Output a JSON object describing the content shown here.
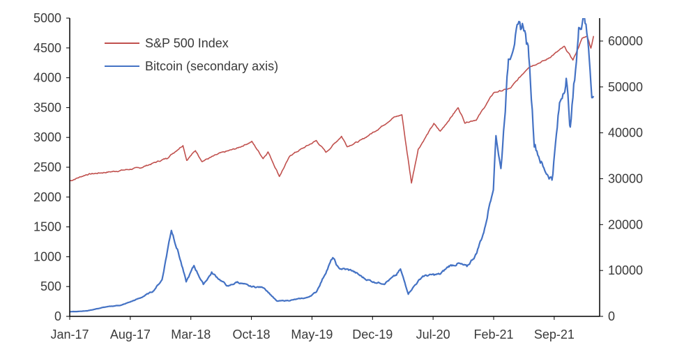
{
  "colors": {
    "sp500": "#C0504D",
    "bitcoin": "#4472C4",
    "axis": "#000000",
    "text": "#3a3a3a"
  },
  "chart_data": {
    "type": "line",
    "title": "",
    "xlabel": "",
    "ylabel": "",
    "y2label": "",
    "grid": false,
    "legend_position": "top-left",
    "x_tick_labels": [
      "Jan-17",
      "Aug-17",
      "Mar-18",
      "Oct-18",
      "May-19",
      "Dec-19",
      "Jul-20",
      "Feb-21",
      "Sep-21"
    ],
    "x_range": [
      "2017-01-01",
      "2021-12-31"
    ],
    "ylim": [
      0,
      5000
    ],
    "y_ticks": [
      0,
      500,
      1000,
      1500,
      2000,
      2500,
      3000,
      3500,
      4000,
      4500,
      5000
    ],
    "y2lim": [
      0,
      65000
    ],
    "y2_ticks": [
      0,
      10000,
      20000,
      30000,
      40000,
      50000,
      60000
    ],
    "series": [
      {
        "name": "S&P 500 Index",
        "axis": "primary",
        "x": [
          "2017-01-01",
          "2017-03-01",
          "2017-06-01",
          "2017-09-01",
          "2017-12-01",
          "2018-01-26",
          "2018-02-08",
          "2018-03-10",
          "2018-04-02",
          "2018-06-01",
          "2018-08-01",
          "2018-09-20",
          "2018-10-29",
          "2018-11-15",
          "2018-12-24",
          "2019-01-31",
          "2019-04-30",
          "2019-06-03",
          "2019-07-26",
          "2019-08-15",
          "2019-10-01",
          "2019-11-29",
          "2020-01-20",
          "2020-02-19",
          "2020-03-02",
          "2020-03-23",
          "2020-04-15",
          "2020-06-08",
          "2020-06-30",
          "2020-08-31",
          "2020-09-23",
          "2020-11-02",
          "2020-12-31",
          "2021-02-26",
          "2021-04-30",
          "2021-06-30",
          "2021-08-31",
          "2021-09-30",
          "2021-10-05",
          "2021-11-01",
          "2021-11-18",
          "2021-12-01",
          "2021-12-10"
        ],
        "values": [
          2270,
          2380,
          2430,
          2490,
          2650,
          2870,
          2620,
          2780,
          2600,
          2730,
          2820,
          2930,
          2650,
          2760,
          2350,
          2700,
          2945,
          2750,
          3020,
          2850,
          2950,
          3140,
          3330,
          3380,
          2950,
          2240,
          2800,
          3230,
          3100,
          3500,
          3250,
          3300,
          3750,
          3820,
          4180,
          4300,
          4520,
          4300,
          4350,
          4660,
          4700,
          4500,
          4700
        ]
      },
      {
        "name": "Bitcoin (secondary axis)",
        "axis": "secondary",
        "x": [
          "2017-01-01",
          "2017-03-01",
          "2017-05-01",
          "2017-07-01",
          "2017-09-01",
          "2017-10-15",
          "2017-11-15",
          "2017-12-17",
          "2018-01-10",
          "2018-02-06",
          "2018-03-05",
          "2018-04-06",
          "2018-05-05",
          "2018-07-01",
          "2018-08-01",
          "2018-09-15",
          "2018-11-01",
          "2018-12-15",
          "2019-01-31",
          "2019-03-31",
          "2019-04-30",
          "2019-06-26",
          "2019-07-15",
          "2019-08-31",
          "2019-10-15",
          "2019-11-15",
          "2019-12-20",
          "2020-01-31",
          "2020-02-14",
          "2020-03-12",
          "2020-04-01",
          "2020-05-01",
          "2020-06-30",
          "2020-07-31",
          "2020-08-31",
          "2020-09-30",
          "2020-10-31",
          "2020-11-30",
          "2020-12-31",
          "2021-01-08",
          "2021-01-25",
          "2021-02-20",
          "2021-03-13",
          "2021-04-14",
          "2021-05-01",
          "2021-05-20",
          "2021-06-22",
          "2021-07-20",
          "2021-08-15",
          "2021-09-07",
          "2021-09-21",
          "2021-10-20",
          "2021-11-08",
          "2021-11-25",
          "2021-12-04",
          "2021-12-10"
        ],
        "values": [
          1000,
          1200,
          2000,
          2500,
          4000,
          5500,
          8000,
          19000,
          14000,
          7500,
          11000,
          7000,
          9500,
          6500,
          7500,
          6500,
          6300,
          3300,
          3500,
          4100,
          5300,
          12800,
          10500,
          10000,
          8200,
          7500,
          7200,
          9000,
          10200,
          5000,
          6600,
          8800,
          9200,
          11000,
          11500,
          10800,
          13500,
          19000,
          29000,
          40000,
          32000,
          56000,
          61000,
          63500,
          57000,
          38000,
          32000,
          30000,
          46000,
          52000,
          41000,
          62000,
          67000,
          57000,
          49000,
          48000
        ]
      }
    ]
  }
}
